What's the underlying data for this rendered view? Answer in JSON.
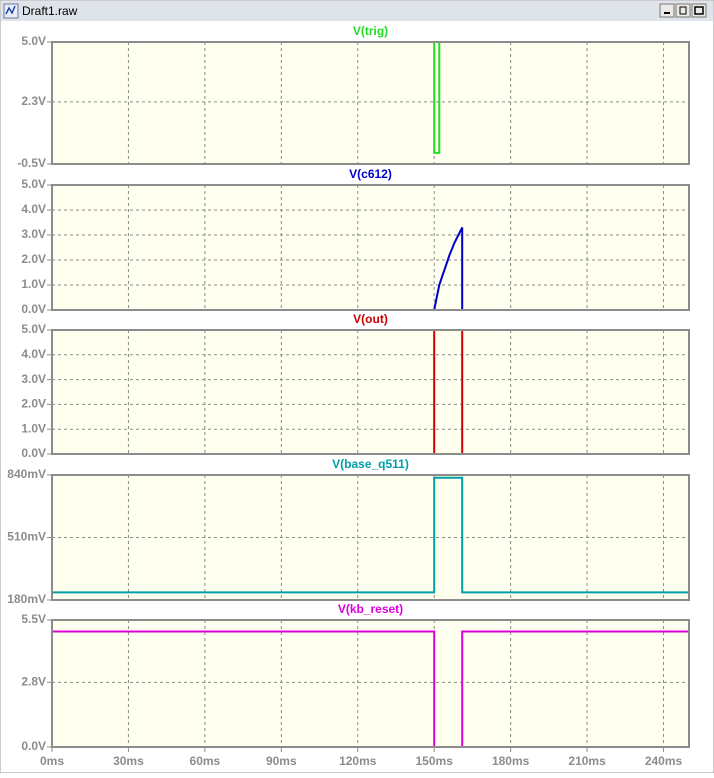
{
  "window_title": "Draft1.raw",
  "chart_data": [
    {
      "type": "line",
      "x": [
        0,
        150,
        150,
        152,
        152,
        250
      ],
      "series": [
        {
          "name": "V(trig)",
          "color": "#22dd22",
          "values": [
            5,
            5,
            0,
            0,
            5,
            5
          ]
        }
      ],
      "xlim": [
        0,
        250
      ],
      "ylim": [
        -0.5,
        5.0
      ],
      "yticks": [
        {
          "value": -0.5,
          "label": "-0.5V"
        },
        {
          "value": 2.3,
          "label": "2.3V"
        },
        {
          "value": 5.0,
          "label": "5.0V"
        }
      ],
      "grid": true
    },
    {
      "type": "line",
      "x": [
        0,
        150,
        151,
        152,
        153,
        154,
        156,
        158,
        160,
        161,
        161,
        250
      ],
      "series": [
        {
          "name": "V(c612)",
          "color": "#0000cc",
          "values": [
            0,
            0,
            0.5,
            1.0,
            1.3,
            1.6,
            2.2,
            2.7,
            3.1,
            3.3,
            0,
            0
          ]
        }
      ],
      "xlim": [
        0,
        250
      ],
      "ylim": [
        0,
        5.0
      ],
      "yticks": [
        {
          "value": 0,
          "label": "0.0V"
        },
        {
          "value": 1,
          "label": "1.0V"
        },
        {
          "value": 2,
          "label": "2.0V"
        },
        {
          "value": 3,
          "label": "3.0V"
        },
        {
          "value": 4,
          "label": "4.0V"
        },
        {
          "value": 5,
          "label": "5.0V"
        }
      ],
      "grid": true
    },
    {
      "type": "line",
      "x": [
        0,
        150,
        150,
        161,
        161,
        250
      ],
      "series": [
        {
          "name": "V(out)",
          "color": "#cc0000",
          "values": [
            0,
            0,
            5,
            5,
            0,
            0
          ]
        }
      ],
      "xlim": [
        0,
        250
      ],
      "ylim": [
        0,
        5.0
      ],
      "yticks": [
        {
          "value": 0,
          "label": "0.0V"
        },
        {
          "value": 1,
          "label": "1.0V"
        },
        {
          "value": 2,
          "label": "2.0V"
        },
        {
          "value": 3,
          "label": "3.0V"
        },
        {
          "value": 4,
          "label": "4.0V"
        },
        {
          "value": 5,
          "label": "5.0V"
        }
      ],
      "grid": true
    },
    {
      "type": "line",
      "x": [
        0,
        150,
        150,
        161,
        161,
        250
      ],
      "series": [
        {
          "name": "V(base_q511)",
          "color": "#00a0a8",
          "values": [
            220,
            220,
            825,
            825,
            220,
            220
          ]
        }
      ],
      "xlim": [
        0,
        250
      ],
      "ylim": [
        180,
        840
      ],
      "yticks": [
        {
          "value": 180,
          "label": "180mV"
        },
        {
          "value": 510,
          "label": "510mV"
        },
        {
          "value": 840,
          "label": "840mV"
        }
      ],
      "grid": true
    },
    {
      "type": "line",
      "x": [
        0,
        150,
        150,
        161,
        161,
        250
      ],
      "series": [
        {
          "name": "V(kb_reset)",
          "color": "#dd00dd",
          "values": [
            5,
            5,
            0,
            0,
            5,
            5
          ]
        }
      ],
      "xlim": [
        0,
        250
      ],
      "ylim": [
        0,
        5.5
      ],
      "yticks": [
        {
          "value": 0,
          "label": "0.0V"
        },
        {
          "value": 2.8,
          "label": "2.8V"
        },
        {
          "value": 5.5,
          "label": "5.5V"
        }
      ],
      "grid": true,
      "xticks": [
        {
          "value": 0,
          "label": "0ms"
        },
        {
          "value": 30,
          "label": "30ms"
        },
        {
          "value": 60,
          "label": "60ms"
        },
        {
          "value": 90,
          "label": "90ms"
        },
        {
          "value": 120,
          "label": "120ms"
        },
        {
          "value": 150,
          "label": "150ms"
        },
        {
          "value": 180,
          "label": "180ms"
        },
        {
          "value": 210,
          "label": "210ms"
        },
        {
          "value": 240,
          "label": "240ms"
        }
      ]
    }
  ]
}
